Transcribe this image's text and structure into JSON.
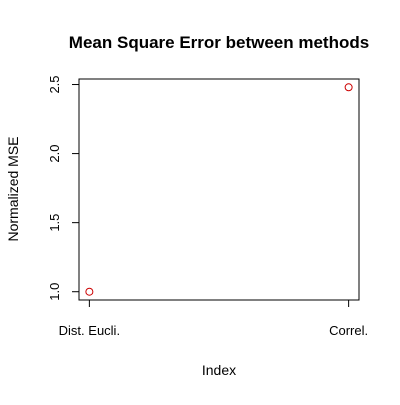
{
  "chart_data": {
    "type": "scatter",
    "title": "Mean Square Error between methods",
    "xlabel": "Index",
    "ylabel": "Normalized MSE",
    "categories": [
      "Dist. Eucli.",
      "Correl."
    ],
    "x": [
      1,
      2
    ],
    "y": [
      1.0,
      2.48
    ],
    "xlim": [
      0.96,
      2.04
    ],
    "ylim": [
      0.94,
      2.54
    ],
    "yticks": [
      1.0,
      1.5,
      2.0,
      2.5
    ],
    "ytick_labels": [
      "1.0",
      "1.5",
      "2.0",
      "2.5"
    ],
    "grid": false,
    "legend": "none",
    "marker": "open-circle",
    "point_color": "#cc0000",
    "axis_color": "#000000"
  }
}
